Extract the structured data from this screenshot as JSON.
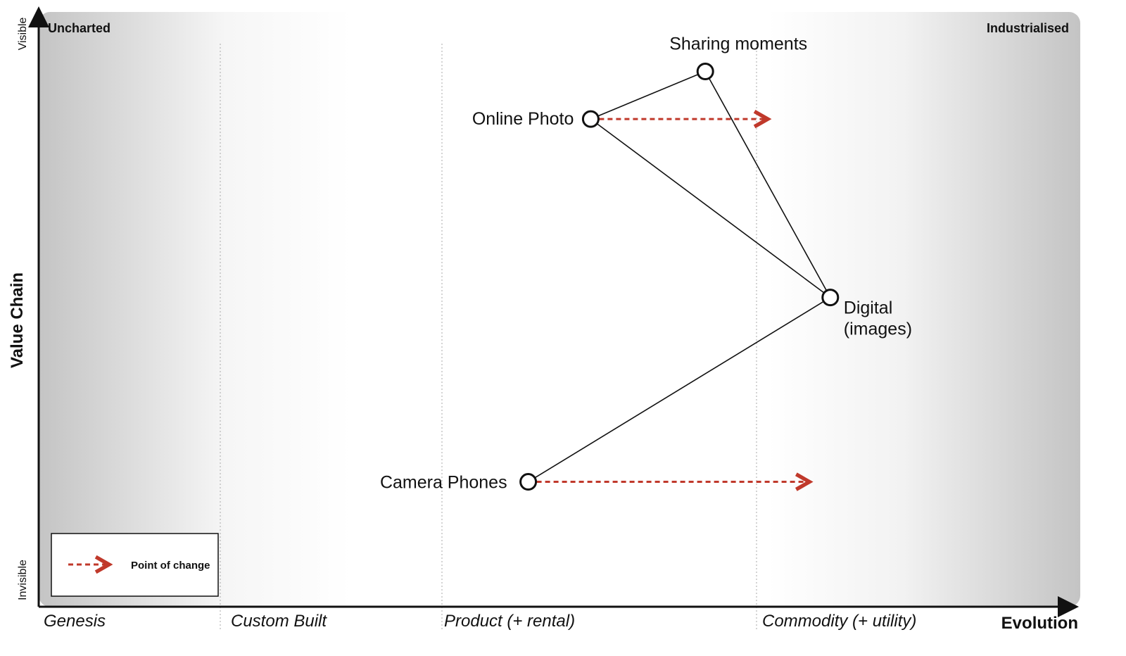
{
  "corners": {
    "top_left": "Uncharted",
    "top_right": "Industrialised"
  },
  "axes": {
    "y_title": "Value Chain",
    "y_top": "Visible",
    "y_bottom": "Invisible",
    "x_title": "Evolution"
  },
  "stages": [
    "Genesis",
    "Custom Built",
    "Product (+ rental)",
    "Commodity (+ utility)"
  ],
  "components": [
    {
      "id": "sharing",
      "label_lines": [
        "Sharing moments"
      ],
      "evolution": 0.64,
      "visibility": 0.9
    },
    {
      "id": "online",
      "label_lines": [
        "Online Photo"
      ],
      "evolution": 0.53,
      "visibility": 0.82
    },
    {
      "id": "digital",
      "label_lines": [
        "Digital",
        "(images)"
      ],
      "evolution": 0.76,
      "visibility": 0.52
    },
    {
      "id": "camera",
      "label_lines": [
        "Camera Phones"
      ],
      "evolution": 0.47,
      "visibility": 0.21
    }
  ],
  "links": [
    [
      "sharing",
      "online"
    ],
    [
      "sharing",
      "digital"
    ],
    [
      "online",
      "digital"
    ],
    [
      "camera",
      "digital"
    ]
  ],
  "changes": [
    {
      "from": "online",
      "to_evolution": 0.7
    },
    {
      "from": "camera",
      "to_evolution": 0.74
    }
  ],
  "legend": {
    "label": "Point of change",
    "arrow_color": "#c0392b"
  },
  "colors": {
    "line": "#111111",
    "change_arrow": "#c0392b",
    "stage_divider": "#aaaaaa"
  }
}
